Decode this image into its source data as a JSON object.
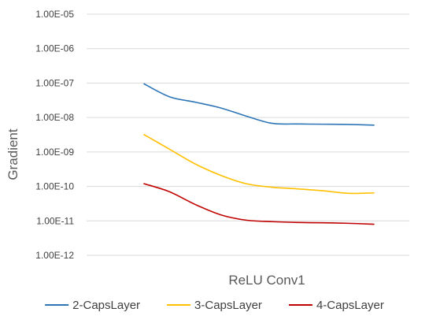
{
  "chart_data": {
    "type": "line",
    "title": "",
    "xlabel": "ReLU Conv1",
    "ylabel": "Gradient",
    "y_scale": "log",
    "ylim": [
      1e-12,
      1e-05
    ],
    "y_ticks": [
      {
        "value": 1e-05,
        "label": "1.00E-05"
      },
      {
        "value": 1e-06,
        "label": "1.00E-06"
      },
      {
        "value": 1e-07,
        "label": "1.00E-07"
      },
      {
        "value": 1e-08,
        "label": "1.00E-08"
      },
      {
        "value": 1e-09,
        "label": "1.00E-09"
      },
      {
        "value": 1e-10,
        "label": "1.00E-10"
      },
      {
        "value": 1e-11,
        "label": "1.00E-11"
      },
      {
        "value": 1e-12,
        "label": "1.00E-12"
      }
    ],
    "grid": true,
    "legend_position": "bottom",
    "x": [
      1,
      2,
      3,
      4,
      5,
      6,
      7,
      8,
      9,
      10
    ],
    "series": [
      {
        "name": "2-CapsLayer",
        "color": "#2e75b6",
        "values": [
          9.5e-08,
          4e-08,
          2.8e-08,
          1.9e-08,
          1.1e-08,
          6.8e-09,
          6.5e-09,
          6.4e-09,
          6.3e-09,
          6e-09
        ]
      },
      {
        "name": "3-CapsLayer",
        "color": "#ffc000",
        "values": [
          3.2e-09,
          1.2e-09,
          4.5e-10,
          2.1e-10,
          1.2e-10,
          9.5e-11,
          8.5e-11,
          7.5e-11,
          6.3e-11,
          6.5e-11
        ]
      },
      {
        "name": "4-CapsLayer",
        "color": "#c00000",
        "values": [
          1.2e-10,
          7e-11,
          3e-11,
          1.5e-11,
          1.05e-11,
          9.5e-12,
          9e-12,
          8.8e-12,
          8.5e-12,
          8e-12
        ]
      }
    ]
  }
}
